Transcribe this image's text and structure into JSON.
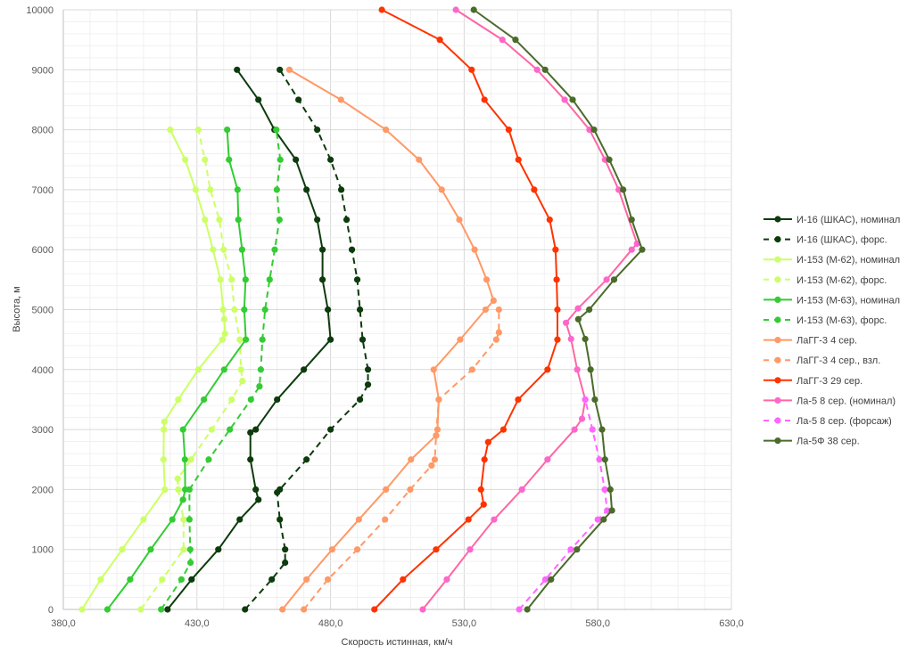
{
  "chart_data": {
    "type": "line",
    "title": "",
    "xlabel": "Скорость истинная, км/ч",
    "ylabel": "Высота, м",
    "xlim": [
      380,
      630
    ],
    "ylim": [
      0,
      10000
    ],
    "x_ticks": [
      "380,0",
      "430,0",
      "480,0",
      "530,0",
      "580,0",
      "630,0"
    ],
    "y_ticks": [
      "0",
      "1000",
      "2000",
      "3000",
      "4000",
      "5000",
      "6000",
      "7000",
      "8000",
      "9000",
      "10000"
    ],
    "grid": true,
    "legend_position": "right",
    "series": [
      {
        "name": "И-16 (ШКАС), номинал",
        "color": "#0d3b0d",
        "dashed": false,
        "points": [
          [
            419,
            0
          ],
          [
            428,
            500
          ],
          [
            438,
            1000
          ],
          [
            446,
            1500
          ],
          [
            453,
            1830
          ],
          [
            452,
            2000
          ],
          [
            450,
            2500
          ],
          [
            450,
            2950
          ],
          [
            452,
            3000
          ],
          [
            460,
            3500
          ],
          [
            470,
            4000
          ],
          [
            480,
            4500
          ],
          [
            479,
            5000
          ],
          [
            477,
            5500
          ],
          [
            477,
            6000
          ],
          [
            475,
            6500
          ],
          [
            471,
            7000
          ],
          [
            467,
            7500
          ],
          [
            459,
            8000
          ],
          [
            453,
            8500
          ],
          [
            445,
            9000
          ]
        ]
      },
      {
        "name": "И-16 (ШКАС), форс.",
        "color": "#0d3b0d",
        "dashed": true,
        "points": [
          [
            448,
            0
          ],
          [
            458,
            500
          ],
          [
            463,
            780
          ],
          [
            463,
            1000
          ],
          [
            461,
            1500
          ],
          [
            460,
            1950
          ],
          [
            461,
            2000
          ],
          [
            471,
            2500
          ],
          [
            480,
            3000
          ],
          [
            491,
            3500
          ],
          [
            494,
            3750
          ],
          [
            494,
            4000
          ],
          [
            492,
            4500
          ],
          [
            491,
            5000
          ],
          [
            490,
            5500
          ],
          [
            488,
            6000
          ],
          [
            486,
            6500
          ],
          [
            484,
            7000
          ],
          [
            480,
            7500
          ],
          [
            475,
            8000
          ],
          [
            468,
            8500
          ],
          [
            461,
            9000
          ]
        ]
      },
      {
        "name": "И-153 (М-62), номинал",
        "color": "#ccff66",
        "dashed": false,
        "points": [
          [
            387,
            0
          ],
          [
            394,
            500
          ],
          [
            402,
            1000
          ],
          [
            410,
            1500
          ],
          [
            418,
            2000
          ],
          [
            417.5,
            2500
          ],
          [
            417.6,
            3000
          ],
          [
            417.8,
            3130
          ],
          [
            423,
            3500
          ],
          [
            430.5,
            4000
          ],
          [
            439.5,
            4500
          ],
          [
            440.5,
            4600
          ],
          [
            440.2,
            4840
          ],
          [
            439.8,
            5000
          ],
          [
            438.8,
            5500
          ],
          [
            436,
            6000
          ],
          [
            433,
            6500
          ],
          [
            429.5,
            7000
          ],
          [
            425.6,
            7500
          ],
          [
            420,
            8000
          ]
        ]
      },
      {
        "name": "И-153 (М-62), форс.",
        "color": "#ccff66",
        "dashed": true,
        "points": [
          [
            409,
            0
          ],
          [
            417,
            500
          ],
          [
            425,
            1000
          ],
          [
            425,
            1500
          ],
          [
            423,
            2000
          ],
          [
            422.8,
            2180
          ],
          [
            427.8,
            2500
          ],
          [
            435.5,
            3000
          ],
          [
            443,
            3500
          ],
          [
            447,
            3810
          ],
          [
            446.5,
            4000
          ],
          [
            446,
            4500
          ],
          [
            444,
            5000
          ],
          [
            443,
            5500
          ],
          [
            440,
            6000
          ],
          [
            438.4,
            6500
          ],
          [
            435,
            7000
          ],
          [
            433,
            7500
          ],
          [
            430.5,
            8000
          ]
        ]
      },
      {
        "name": "И-153 (М-63), номинал",
        "color": "#33cc33",
        "dashed": false,
        "points": [
          [
            396.5,
            0
          ],
          [
            405,
            500
          ],
          [
            412.7,
            1000
          ],
          [
            420.8,
            1500
          ],
          [
            424.8,
            1830
          ],
          [
            425.6,
            2000
          ],
          [
            425.5,
            2500
          ],
          [
            424.8,
            3000
          ],
          [
            432.6,
            3500
          ],
          [
            440.2,
            4000
          ],
          [
            448.3,
            4500
          ],
          [
            447.7,
            5000
          ],
          [
            448.2,
            5500
          ],
          [
            446.9,
            6000
          ],
          [
            445.5,
            6500
          ],
          [
            445.2,
            7000
          ],
          [
            442,
            7500
          ],
          [
            441.3,
            8000
          ]
        ]
      },
      {
        "name": "И-153 (М-63), форс.",
        "color": "#33cc33",
        "dashed": true,
        "points": [
          [
            416.6,
            0
          ],
          [
            424.2,
            500
          ],
          [
            427.6,
            780
          ],
          [
            427.5,
            1000
          ],
          [
            427.2,
            1500
          ],
          [
            427.2,
            2000
          ],
          [
            434.4,
            2500
          ],
          [
            442.3,
            3000
          ],
          [
            450.2,
            3500
          ],
          [
            453.4,
            3720
          ],
          [
            453.9,
            4000
          ],
          [
            454.5,
            4500
          ],
          [
            455.5,
            5000
          ],
          [
            457.2,
            5500
          ],
          [
            459.1,
            6000
          ],
          [
            460.9,
            6500
          ],
          [
            459.9,
            7000
          ],
          [
            461.2,
            7500
          ],
          [
            459.7,
            8000
          ]
        ]
      },
      {
        "name": "ЛаГГ-3 4 сер.",
        "color": "#ff9966",
        "dashed": false,
        "points": [
          [
            462,
            0
          ],
          [
            471,
            500
          ],
          [
            480.6,
            1000
          ],
          [
            490.6,
            1500
          ],
          [
            500.7,
            2000
          ],
          [
            510.1,
            2500
          ],
          [
            519.5,
            2900
          ],
          [
            520,
            3000
          ],
          [
            520.5,
            3500
          ],
          [
            518.6,
            4000
          ],
          [
            528.5,
            4500
          ],
          [
            538,
            5000
          ],
          [
            541,
            5150
          ],
          [
            538.4,
            5500
          ],
          [
            533.9,
            6000
          ],
          [
            528.2,
            6500
          ],
          [
            521.6,
            7000
          ],
          [
            513.1,
            7500
          ],
          [
            500.7,
            8000
          ],
          [
            483.9,
            8500
          ],
          [
            464.6,
            9000
          ]
        ]
      },
      {
        "name": "ЛаГГ-3 4 сер., взл.",
        "color": "#ff9966",
        "dashed": true,
        "points": [
          [
            470,
            0
          ],
          [
            479,
            500
          ],
          [
            490,
            1000
          ],
          [
            500.4,
            1500
          ],
          [
            509.8,
            2000
          ],
          [
            517.8,
            2400
          ],
          [
            519,
            2500
          ],
          [
            519.5,
            2900
          ],
          [
            520.5,
            3500
          ],
          [
            533,
            4000
          ],
          [
            542,
            4500
          ],
          [
            543,
            4620
          ],
          [
            543,
            5000
          ]
        ]
      },
      {
        "name": "ЛаГГ-3 29 сер.",
        "color": "#ff3300",
        "dashed": false,
        "points": [
          [
            496.4,
            0
          ],
          [
            507.1,
            500
          ],
          [
            519.5,
            1000
          ],
          [
            531.6,
            1500
          ],
          [
            537.3,
            1750
          ],
          [
            536.3,
            2000
          ],
          [
            537.6,
            2500
          ],
          [
            539,
            2790
          ],
          [
            544.7,
            3000
          ],
          [
            550.2,
            3500
          ],
          [
            561.2,
            4000
          ],
          [
            564.9,
            4500
          ],
          [
            564.9,
            5000
          ],
          [
            564.6,
            5500
          ],
          [
            564.2,
            6000
          ],
          [
            562,
            6500
          ],
          [
            556.2,
            7000
          ],
          [
            550.3,
            7500
          ],
          [
            546.7,
            8000
          ],
          [
            537.6,
            8500
          ],
          [
            532.8,
            9000
          ],
          [
            520.9,
            9500
          ],
          [
            499.2,
            10000
          ]
        ]
      },
      {
        "name": "Ла-5 8 сер. (номинал)",
        "color": "#ff66a3",
        "marker": "#ff66cc",
        "dashed": false,
        "points": [
          [
            514.5,
            0
          ],
          [
            523.5,
            500
          ],
          [
            532.2,
            1000
          ],
          [
            541.2,
            1500
          ],
          [
            551.6,
            2000
          ],
          [
            561.2,
            2500
          ],
          [
            571.3,
            3000
          ],
          [
            574.1,
            3180
          ],
          [
            575.3,
            3500
          ],
          [
            572.3,
            4000
          ],
          [
            570,
            4510
          ],
          [
            568.1,
            4780
          ],
          [
            572.6,
            5020
          ],
          [
            583.3,
            5500
          ],
          [
            592.7,
            6000
          ],
          [
            594.7,
            6100
          ],
          [
            587.8,
            7000
          ],
          [
            582.7,
            7500
          ],
          [
            576.9,
            8000
          ],
          [
            567.6,
            8500
          ],
          [
            557.3,
            9000
          ],
          [
            544.3,
            9500
          ],
          [
            526.9,
            10000
          ]
        ]
      },
      {
        "name": "Ла-5 8 сер. (форсаж)",
        "color": "#ff66ff",
        "dashed": true,
        "points": [
          [
            550.6,
            0
          ],
          [
            560.4,
            500
          ],
          [
            569.9,
            1000
          ],
          [
            580,
            1500
          ],
          [
            583.5,
            1650
          ],
          [
            582.6,
            2000
          ],
          [
            580.6,
            2500
          ],
          [
            578,
            3000
          ],
          [
            575.3,
            3500
          ]
        ]
      },
      {
        "name": "Ла-5Ф 38 сер.",
        "color": "#4a6b2a",
        "dashed": false,
        "points": [
          [
            553.6,
            0
          ],
          [
            562.5,
            500
          ],
          [
            572.2,
            1000
          ],
          [
            582.2,
            1500
          ],
          [
            585.3,
            1650
          ],
          [
            584.7,
            2000
          ],
          [
            582.7,
            2500
          ],
          [
            581.6,
            3000
          ],
          [
            578.9,
            3500
          ],
          [
            577.3,
            4000
          ],
          [
            575.3,
            4510
          ],
          [
            572.7,
            4840
          ],
          [
            576.8,
            5000
          ],
          [
            586.1,
            5500
          ],
          [
            596.6,
            6000
          ],
          [
            592.7,
            6500
          ],
          [
            589.5,
            7000
          ],
          [
            584.3,
            7500
          ],
          [
            578.6,
            8000
          ],
          [
            570.6,
            8500
          ],
          [
            560.3,
            9000
          ],
          [
            549.2,
            9500
          ],
          [
            533.6,
            10000
          ]
        ]
      }
    ]
  }
}
